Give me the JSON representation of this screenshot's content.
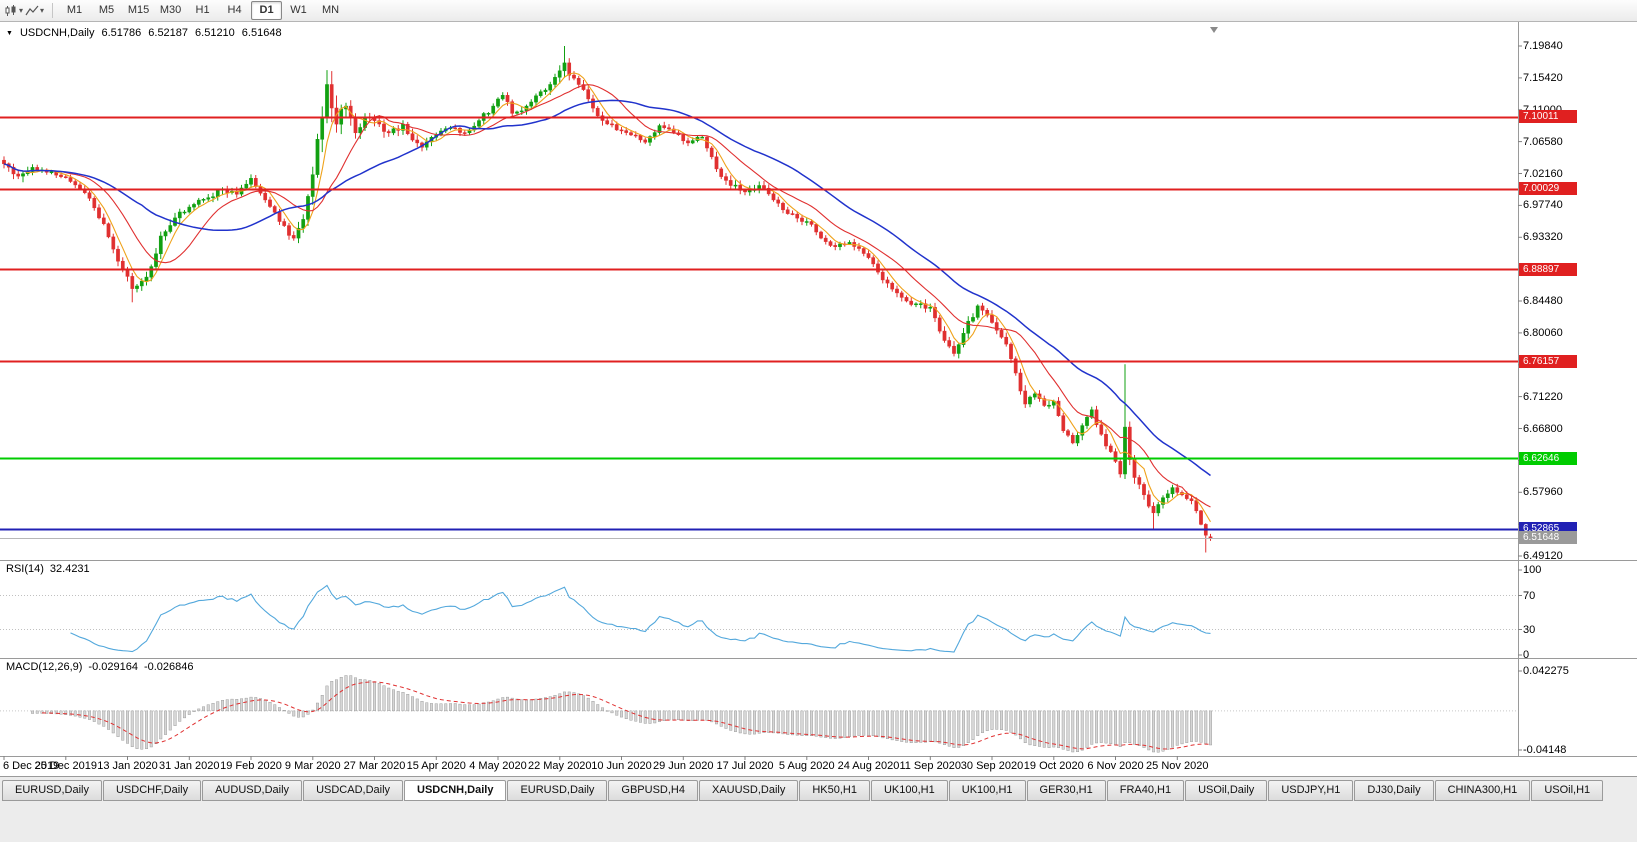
{
  "toolbar": {
    "timeframes": [
      "M1",
      "M5",
      "M15",
      "M30",
      "H1",
      "H4",
      "D1",
      "W1",
      "MN"
    ],
    "selected": "D1"
  },
  "chart_header": {
    "symbol": "USDCNH,Daily",
    "open": "6.51786",
    "high": "6.52187",
    "low": "6.51210",
    "close": "6.51648"
  },
  "price_axis": {
    "top_value": 7.1984,
    "bottom_value": 6.4912,
    "labels": [
      "7.19840",
      "7.15420",
      "7.11000",
      "7.06580",
      "7.02160",
      "6.97740",
      "6.93320",
      "6.88900",
      "6.84480",
      "6.80060",
      "6.75640",
      "6.71220",
      "6.66800",
      "6.62380",
      "6.57960",
      "6.53540",
      "6.49120"
    ]
  },
  "levels": [
    {
      "text": "7.10011",
      "value": 7.10011,
      "color": "#e02020"
    },
    {
      "text": "7.00029",
      "value": 7.00029,
      "color": "#e02020"
    },
    {
      "text": "6.88897",
      "value": 6.88897,
      "color": "#e02020"
    },
    {
      "text": "6.76157",
      "value": 6.76157,
      "color": "#e02020"
    },
    {
      "text": "6.62646",
      "value": 6.62646,
      "color": "#00cc00"
    },
    {
      "text": "6.52865",
      "value": 6.52865,
      "color": "#2121b4"
    }
  ],
  "current_price": {
    "text": "6.51648",
    "value": 6.51648,
    "color": "#9a9a9a"
  },
  "rsi_panel": {
    "name": "RSI(14)",
    "value": "32.4231",
    "period": 14,
    "levels": [
      {
        "text": "100",
        "value": 100
      },
      {
        "text": "70",
        "value": 70
      },
      {
        "text": "30",
        "value": 30
      },
      {
        "text": "0",
        "value": 0
      }
    ]
  },
  "macd_panel": {
    "name": "MACD(12,26,9)",
    "value1": "-0.029164",
    "value2": "-0.026846",
    "fast": 12,
    "slow": 26,
    "signal": 9,
    "scale": [
      {
        "text": "0.042275",
        "value": 0.042275
      },
      {
        "text": "-0.04148",
        "value": -0.04148
      }
    ]
  },
  "time_axis": {
    "labels": [
      "6 Dec 2019",
      "25 Dec 2019",
      "13 Jan 2020",
      "31 Jan 2020",
      "19 Feb 2020",
      "9 Mar 2020",
      "27 Mar 2020",
      "15 Apr 2020",
      "4 May 2020",
      "22 May 2020",
      "10 Jun 2020",
      "29 Jun 2020",
      "17 Jul 2020",
      "5 Aug 2020",
      "24 Aug 2020",
      "11 Sep 2020",
      "30 Sep 2020",
      "19 Oct 2020",
      "6 Nov 2020",
      "25 Nov 2020"
    ]
  },
  "tabs": {
    "active_index": 4,
    "items": [
      "EURUSD,Daily",
      "USDCHF,Daily",
      "AUDUSD,Daily",
      "USDCAD,Daily",
      "USDCNH,Daily",
      "EURUSD,Daily",
      "GBPUSD,H4",
      "XAUUSD,Daily",
      "HK50,H1",
      "UK100,H1",
      "UK100,H1",
      "GER30,H1",
      "FRA40,H1",
      "USOil,Daily",
      "USDJPY,H1",
      "DJ30,Daily",
      "CHINA300,H1",
      "USOil,H1"
    ]
  },
  "colors": {
    "up": "#12a012",
    "down": "#e03030",
    "rsi": "#53a8dc",
    "rsi_level": "#c0c0c0",
    "macd_hist_fill": "#d6d6d6",
    "macd_hist_stroke": "#8f8f8f",
    "macd_signal": "#e03030",
    "current_line": "#b8b8b8",
    "separator": "#9a9a9a",
    "tick": "#808080"
  },
  "chart_data": {
    "type": "candlestick",
    "symbol": "USDCNH",
    "period": "Daily",
    "bars": 255,
    "anchors": [
      [
        0,
        7.035,
        0.008
      ],
      [
        3,
        7.018,
        0.01
      ],
      [
        6,
        7.03,
        0.006
      ],
      [
        10,
        7.024,
        0.005
      ],
      [
        13,
        7.016,
        0.005
      ],
      [
        17,
        6.995,
        0.006
      ],
      [
        21,
        6.952,
        0.007
      ],
      [
        24,
        6.9,
        0.009
      ],
      [
        27,
        6.862,
        0.01
      ],
      [
        30,
        6.878,
        0.012
      ],
      [
        33,
        6.935,
        0.01
      ],
      [
        36,
        6.96,
        0.008
      ],
      [
        39,
        6.975,
        0.007
      ],
      [
        43,
        6.988,
        0.007
      ],
      [
        46,
        7.0,
        0.008
      ],
      [
        49,
        6.993,
        0.007
      ],
      [
        52,
        7.015,
        0.007
      ],
      [
        55,
        6.985,
        0.008
      ],
      [
        58,
        6.955,
        0.008
      ],
      [
        61,
        6.932,
        0.01
      ],
      [
        63,
        6.958,
        0.012
      ],
      [
        65,
        7.02,
        0.018
      ],
      [
        67,
        7.1,
        0.022
      ],
      [
        68,
        7.145,
        0.022
      ],
      [
        70,
        7.09,
        0.02
      ],
      [
        72,
        7.115,
        0.016
      ],
      [
        74,
        7.078,
        0.013
      ],
      [
        76,
        7.1,
        0.011
      ],
      [
        78,
        7.095,
        0.01
      ],
      [
        81,
        7.078,
        0.009
      ],
      [
        84,
        7.09,
        0.008
      ],
      [
        86,
        7.068,
        0.008
      ],
      [
        88,
        7.058,
        0.008
      ],
      [
        91,
        7.075,
        0.007
      ],
      [
        94,
        7.085,
        0.006
      ],
      [
        97,
        7.078,
        0.006
      ],
      [
        100,
        7.095,
        0.006
      ],
      [
        103,
        7.115,
        0.007
      ],
      [
        105,
        7.13,
        0.008
      ],
      [
        107,
        7.105,
        0.008
      ],
      [
        110,
        7.115,
        0.007
      ],
      [
        113,
        7.135,
        0.008
      ],
      [
        116,
        7.155,
        0.01
      ],
      [
        118,
        7.175,
        0.012
      ],
      [
        119,
        7.158,
        0.01
      ],
      [
        121,
        7.145,
        0.008
      ],
      [
        123,
        7.125,
        0.008
      ],
      [
        126,
        7.095,
        0.008
      ],
      [
        129,
        7.082,
        0.007
      ],
      [
        132,
        7.075,
        0.006
      ],
      [
        135,
        7.065,
        0.006
      ],
      [
        138,
        7.088,
        0.006
      ],
      [
        141,
        7.078,
        0.006
      ],
      [
        144,
        7.064,
        0.006
      ],
      [
        147,
        7.072,
        0.006
      ],
      [
        150,
        7.028,
        0.008
      ],
      [
        153,
        7.005,
        0.008
      ],
      [
        156,
        6.996,
        0.008
      ],
      [
        159,
        7.005,
        0.007
      ],
      [
        162,
        6.985,
        0.007
      ],
      [
        165,
        6.966,
        0.007
      ],
      [
        169,
        6.955,
        0.007
      ],
      [
        172,
        6.932,
        0.007
      ],
      [
        175,
        6.92,
        0.006
      ],
      [
        178,
        6.926,
        0.006
      ],
      [
        182,
        6.905,
        0.006
      ],
      [
        185,
        6.874,
        0.007
      ],
      [
        188,
        6.856,
        0.007
      ],
      [
        191,
        6.84,
        0.007
      ],
      [
        195,
        6.836,
        0.007
      ],
      [
        198,
        6.79,
        0.009
      ],
      [
        200,
        6.772,
        0.009
      ],
      [
        202,
        6.8,
        0.009
      ],
      [
        205,
        6.838,
        0.008
      ],
      [
        208,
        6.815,
        0.008
      ],
      [
        211,
        6.785,
        0.008
      ],
      [
        213,
        6.745,
        0.009
      ],
      [
        215,
        6.702,
        0.009
      ],
      [
        217,
        6.716,
        0.008
      ],
      [
        219,
        6.7,
        0.007
      ],
      [
        221,
        6.706,
        0.007
      ],
      [
        223,
        6.665,
        0.008
      ],
      [
        225,
        6.648,
        0.008
      ],
      [
        227,
        6.672,
        0.008
      ],
      [
        229,
        6.694,
        0.008
      ],
      [
        231,
        6.66,
        0.008
      ],
      [
        233,
        6.636,
        0.009
      ],
      [
        235,
        6.605,
        0.01
      ],
      [
        236,
        6.67,
        0.012
      ],
      [
        237,
        6.625,
        0.012
      ],
      [
        238,
        6.6,
        0.01
      ],
      [
        240,
        6.576,
        0.008
      ],
      [
        242,
        6.551,
        0.008
      ],
      [
        244,
        6.572,
        0.007
      ],
      [
        246,
        6.586,
        0.006
      ],
      [
        248,
        6.576,
        0.006
      ],
      [
        250,
        6.568,
        0.006
      ],
      [
        252,
        6.535,
        0.005
      ],
      [
        253,
        6.52,
        0.004
      ],
      [
        254,
        6.51648,
        0.003
      ]
    ],
    "wick_overrides": [
      [
        27,
        null,
        6.843
      ],
      [
        68,
        7.165,
        null
      ],
      [
        118,
        7.1984,
        null
      ],
      [
        236,
        6.757,
        6.598
      ],
      [
        242,
        null,
        6.529
      ],
      [
        253,
        null,
        6.496
      ]
    ],
    "last_candle": {
      "open": 6.51786,
      "high": 6.52187,
      "low": 6.5121,
      "close": 6.51648
    },
    "moving_averages": [
      {
        "period": 5,
        "color": "#efa21b"
      },
      {
        "period": 13,
        "color": "#e03030"
      },
      {
        "period": 30,
        "color": "#2133cc"
      }
    ]
  }
}
